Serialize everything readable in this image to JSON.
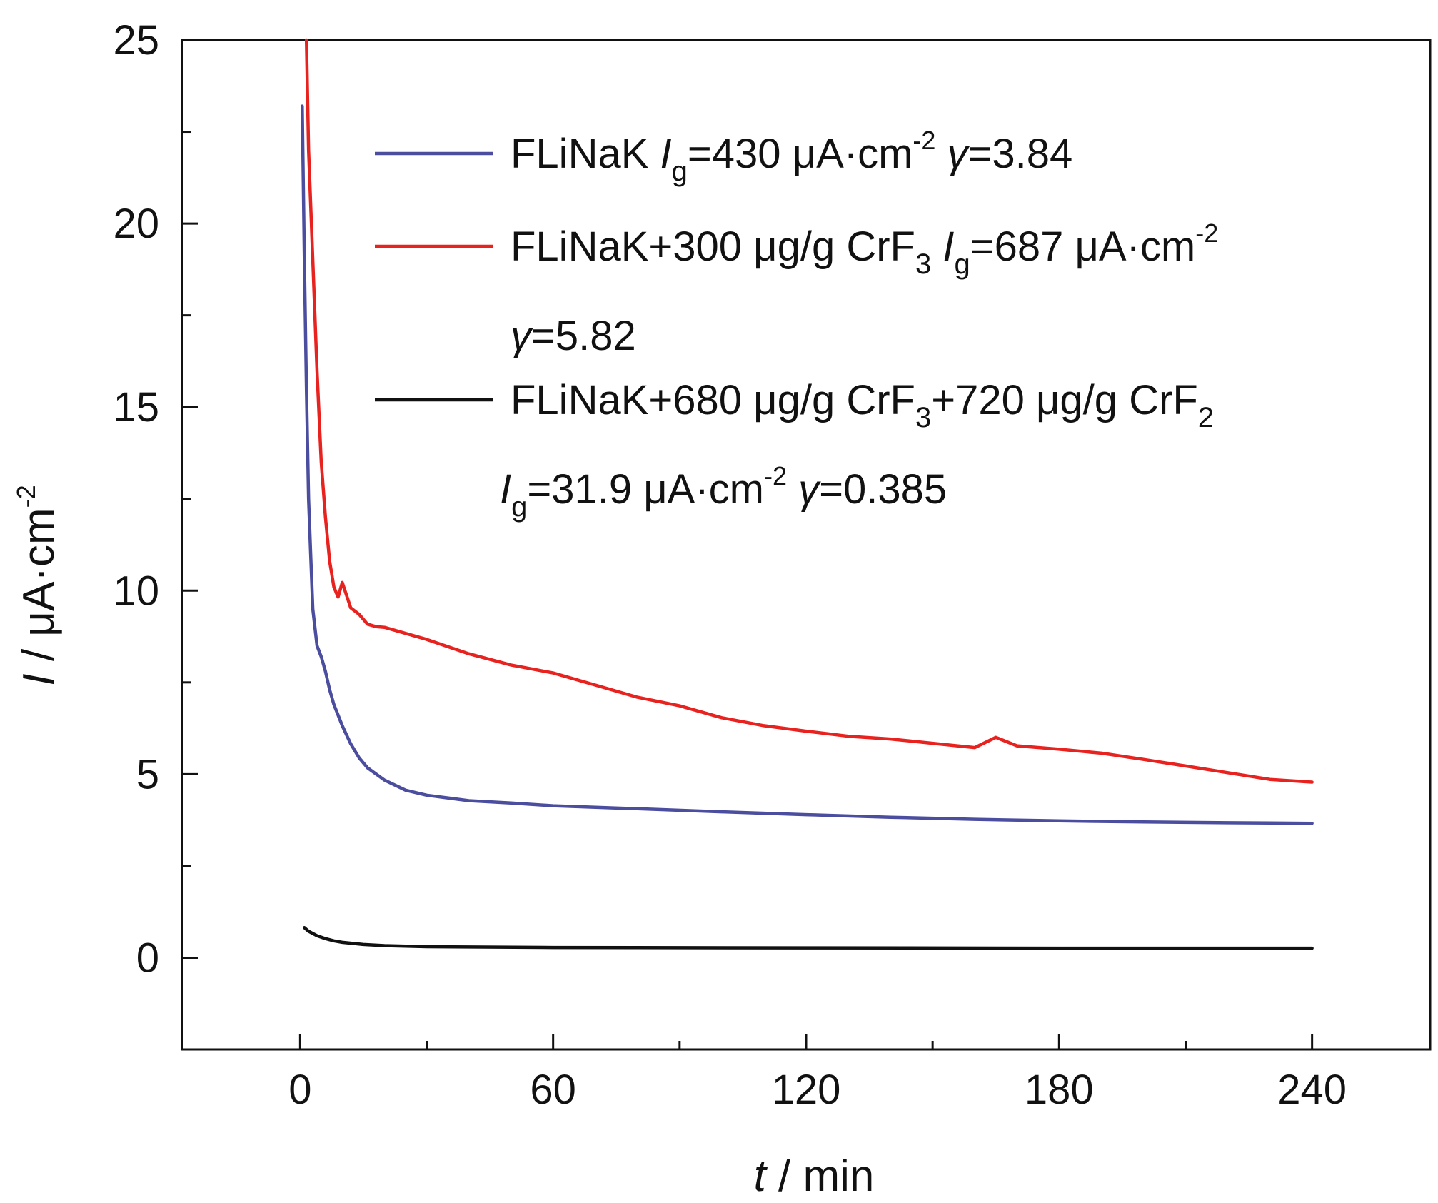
{
  "chart_data": {
    "type": "line",
    "xlabel": {
      "var": "t",
      "rest": " / min"
    },
    "ylabel": {
      "var": "I",
      "rest": " / μA·cm",
      "sup": "-2"
    },
    "xlim": [
      -28,
      268
    ],
    "ylim": [
      -2.5,
      25
    ],
    "x_ticks": [
      0,
      60,
      120,
      180,
      240
    ],
    "x_tick_labels": [
      "0",
      "60",
      "120",
      "180",
      "240"
    ],
    "y_ticks": [
      0,
      5,
      10,
      15,
      20,
      25
    ],
    "y_tick_labels": [
      "0",
      "5",
      "10",
      "15",
      "20",
      "25"
    ],
    "x_minor_step": 30,
    "y_minor_step": 2.5,
    "legend_position": "upper-right",
    "series": [
      {
        "name": "FLiNaK",
        "color": "#4b4d9e",
        "x": [
          0.5,
          1,
          1.5,
          2,
          2.5,
          3,
          4,
          5,
          6,
          7,
          8,
          10,
          12,
          14,
          16,
          18,
          20,
          25,
          30,
          40,
          50,
          60,
          80,
          100,
          120,
          140,
          160,
          180,
          200,
          220,
          240
        ],
        "y": [
          23.2,
          19.0,
          15.5,
          12.5,
          11.0,
          9.5,
          8.5,
          8.2,
          7.8,
          7.3,
          6.9,
          6.4,
          5.9,
          5.5,
          5.2,
          5.0,
          4.8,
          4.5,
          4.35,
          4.2,
          4.15,
          4.1,
          4.05,
          4.0,
          3.95,
          3.9,
          3.85,
          3.8,
          3.75,
          3.7,
          3.65
        ]
      },
      {
        "name": "FLiNaK+300 μg/g CrF3",
        "color": "#e8221f",
        "x": [
          1.5,
          2,
          3,
          4,
          5,
          6,
          7,
          8,
          9,
          10,
          12,
          14,
          16,
          18,
          20,
          30,
          40,
          50,
          60,
          70,
          80,
          90,
          100,
          110,
          120,
          130,
          140,
          150,
          160,
          165,
          170,
          180,
          190,
          200,
          210,
          220,
          230,
          240
        ],
        "y": [
          25,
          22,
          19,
          16,
          13.5,
          12,
          10.8,
          10.1,
          9.9,
          10.3,
          9.6,
          9.4,
          9.1,
          9.0,
          8.95,
          8.6,
          8.2,
          7.9,
          7.7,
          7.4,
          7.1,
          6.9,
          6.6,
          6.4,
          6.25,
          6.1,
          6.0,
          5.85,
          5.7,
          5.95,
          5.7,
          5.6,
          5.5,
          5.35,
          5.2,
          5.05,
          4.9,
          4.85
        ]
      },
      {
        "name": "FLiNaK+680 μg/g CrF3+720 μg/g CrF2",
        "color": "#111111",
        "x": [
          1,
          2,
          4,
          6,
          8,
          10,
          15,
          20,
          30,
          60,
          120,
          180,
          240
        ],
        "y": [
          0.82,
          0.72,
          0.6,
          0.52,
          0.46,
          0.42,
          0.36,
          0.33,
          0.3,
          0.28,
          0.27,
          0.26,
          0.26
        ]
      }
    ]
  },
  "legend": {
    "items": [
      {
        "color": "#4b4d9e",
        "lines": [
          [
            {
              "t": "FLiNaK  "
            },
            {
              "t": "I",
              "s": "i"
            },
            {
              "t": "g",
              "s": "sub"
            },
            {
              "t": "=430 μA·cm"
            },
            {
              "t": "-2",
              "s": "sup"
            },
            {
              "t": " "
            },
            {
              "t": "γ",
              "s": "i"
            },
            {
              "t": "=3.84"
            }
          ]
        ]
      },
      {
        "color": "#e8221f",
        "lines": [
          [
            {
              "t": "FLiNaK+300 μg/g CrF"
            },
            {
              "t": "3",
              "s": "sub"
            },
            {
              "t": "  "
            },
            {
              "t": "I",
              "s": "i"
            },
            {
              "t": "g",
              "s": "sub"
            },
            {
              "t": "=687 μA·cm"
            },
            {
              "t": "-2",
              "s": "sup"
            }
          ],
          [
            {
              "t": "γ",
              "s": "i"
            },
            {
              "t": "=5.82"
            }
          ]
        ]
      },
      {
        "color": "#111111",
        "lines": [
          [
            {
              "t": "FLiNaK+680 μg/g CrF"
            },
            {
              "t": "3",
              "s": "sub"
            },
            {
              "t": "+720 μg/g CrF"
            },
            {
              "t": "2",
              "s": "sub"
            }
          ],
          [
            {
              "t": "I",
              "s": "i"
            },
            {
              "t": "g",
              "s": "sub"
            },
            {
              "t": "=31.9 μA·cm"
            },
            {
              "t": "-2",
              "s": "sup"
            },
            {
              "t": "  "
            },
            {
              "t": "γ",
              "s": "i"
            },
            {
              "t": "=0.385"
            }
          ]
        ]
      }
    ]
  }
}
